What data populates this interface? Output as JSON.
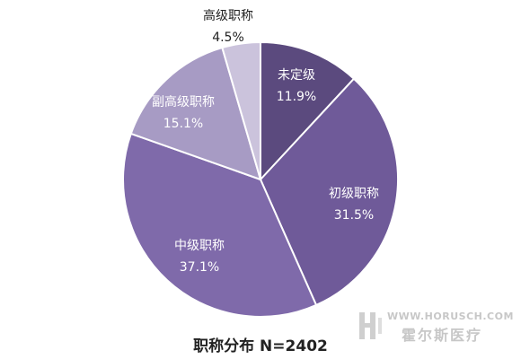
{
  "chart_data": {
    "type": "pie",
    "title": "职称分布 N=2402",
    "slices": [
      {
        "label": "未定级",
        "value": 11.9,
        "display": "11.9%",
        "color": "#5b4a7e"
      },
      {
        "label": "初级职称",
        "value": 31.5,
        "display": "31.5%",
        "color": "#6f5a99"
      },
      {
        "label": "中级职称",
        "value": 37.1,
        "display": "37.1%",
        "color": "#7f6aaa"
      },
      {
        "label": "副高级职称",
        "value": 15.1,
        "display": "15.1%",
        "color": "#a79bc4"
      },
      {
        "label": "高级职称",
        "value": 4.5,
        "display": "4.5%",
        "color": "#cbc3dc"
      }
    ]
  },
  "watermark": {
    "url": "WWW.HORUSCH.COM",
    "name": "霍尔斯医疗"
  }
}
